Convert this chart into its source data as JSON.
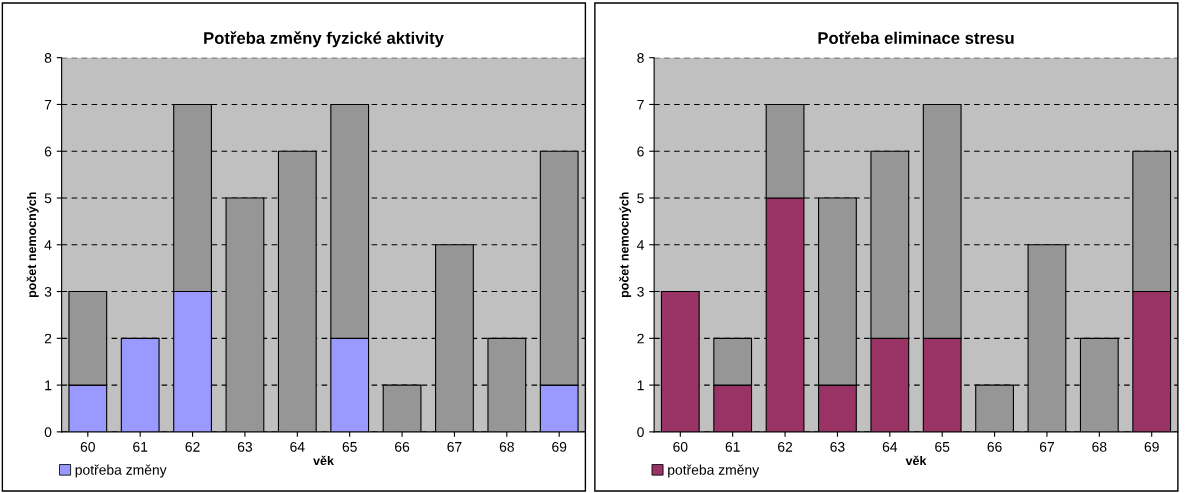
{
  "chart_data": [
    {
      "type": "bar",
      "title": "Potřeba změny fyzické aktivity",
      "xlabel": "věk",
      "ylabel": "počet nemocných",
      "categories": [
        "60",
        "61",
        "62",
        "63",
        "64",
        "65",
        "66",
        "67",
        "68",
        "69"
      ],
      "stacked": true,
      "series": [
        {
          "name": "potřeba změny",
          "color": "#9999ff",
          "values": [
            1,
            2,
            3,
            0,
            0,
            2,
            0,
            0,
            0,
            1
          ]
        },
        {
          "color": "#969696",
          "values": [
            2,
            0,
            4,
            5,
            6,
            5,
            1,
            4,
            2,
            5
          ]
        }
      ],
      "ylim": [
        0,
        8
      ],
      "yticks": [
        0,
        1,
        2,
        3,
        4,
        5,
        6,
        7,
        8
      ],
      "grid": "y",
      "legend": "bottom left"
    },
    {
      "type": "bar",
      "title": "Potřeba eliminace stresu",
      "xlabel": "věk",
      "ylabel": "počet nemocných",
      "categories": [
        "60",
        "61",
        "62",
        "63",
        "64",
        "65",
        "66",
        "67",
        "68",
        "69"
      ],
      "stacked": true,
      "series": [
        {
          "name": "potřeba změny",
          "color": "#993366",
          "values": [
            3,
            1,
            5,
            1,
            2,
            2,
            0,
            0,
            0,
            3
          ]
        },
        {
          "color": "#969696",
          "values": [
            0,
            1,
            2,
            4,
            4,
            5,
            1,
            4,
            2,
            3
          ]
        }
      ],
      "ylim": [
        0,
        8
      ],
      "yticks": [
        0,
        1,
        2,
        3,
        4,
        5,
        6,
        7,
        8
      ],
      "grid": "y",
      "legend": "bottom left"
    }
  ]
}
